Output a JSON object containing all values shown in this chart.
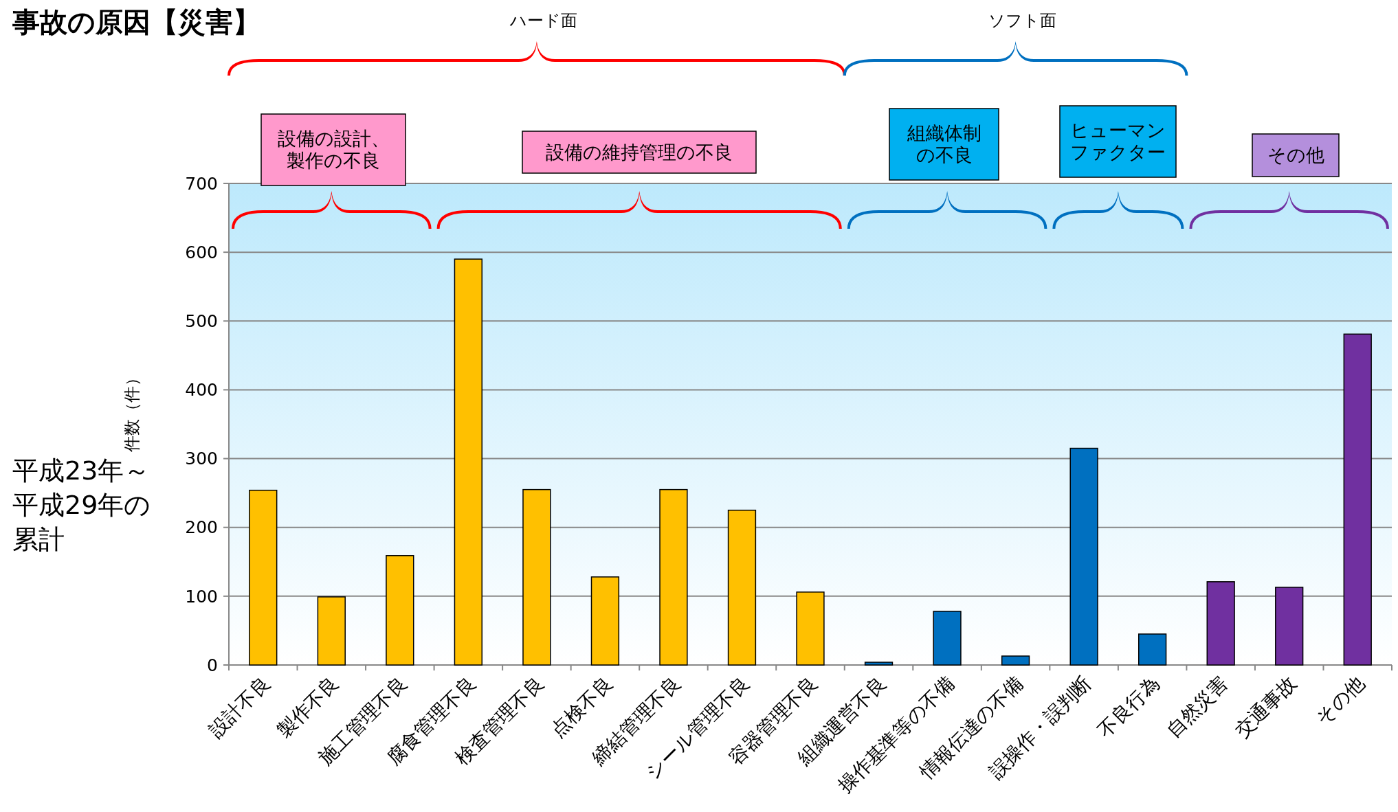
{
  "chart_data": {
    "type": "bar",
    "title": "事故の原因【災害】",
    "ylabel": "件数（件）",
    "categories": [
      "設計不良",
      "製作不良",
      "施工管理不良",
      "腐食管理不良",
      "検査管理不良",
      "点検不良",
      "締結管理不良",
      "シール管理不良",
      "容器管理不良",
      "組織運営不良",
      "操作基準等の不備",
      "情報伝達の不備",
      "誤操作・誤判断",
      "不良行為",
      "自然災害",
      "交通事故",
      "その他"
    ],
    "values": [
      254,
      99,
      159,
      590,
      255,
      128,
      255,
      225,
      106,
      4,
      78,
      13,
      315,
      45,
      121,
      113,
      481
    ],
    "colors": [
      "#ffc000",
      "#ffc000",
      "#ffc000",
      "#ffc000",
      "#ffc000",
      "#ffc000",
      "#ffc000",
      "#ffc000",
      "#ffc000",
      "#0070c0",
      "#0070c0",
      "#0070c0",
      "#0070c0",
      "#0070c0",
      "#7030a0",
      "#7030a0",
      "#7030a0"
    ],
    "ylim": [
      0,
      700
    ],
    "yticks": [
      0,
      100,
      200,
      300,
      400,
      500,
      600,
      700
    ],
    "grid": "y",
    "annotations": [
      "ハード面",
      "ソフト面",
      "設備の設計、製作の不良",
      "設備の維持管理の不良",
      "組織体制の不良",
      "ヒューマンファクター",
      "その他",
      "平成23年～平成29年の累計"
    ]
  }
}
